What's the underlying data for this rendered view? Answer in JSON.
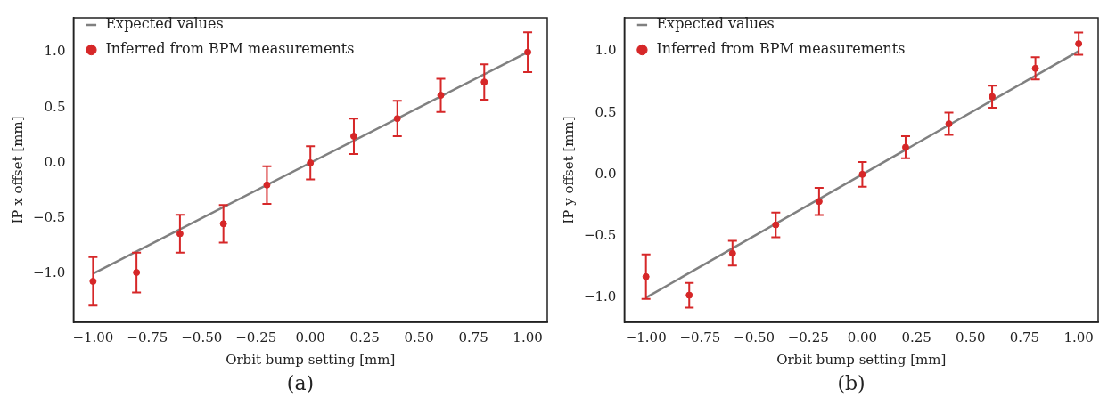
{
  "chart_data": [
    {
      "type": "scatter",
      "xlabel": "Orbit bump setting [mm]",
      "ylabel": "IP x offset [mm]",
      "annotations": [
        "(a)"
      ],
      "legend": "top left",
      "grid": false,
      "xlim": [
        -1.09,
        1.09
      ],
      "xticks": [
        {
          "value": -1,
          "label": "−1.00"
        },
        {
          "value": -0.75,
          "label": "−0.75"
        },
        {
          "value": -0.5,
          "label": "−0.50"
        },
        {
          "value": -0.25,
          "label": "−0.25"
        },
        {
          "value": 0,
          "label": "0.00"
        },
        {
          "value": 0.25,
          "label": "0.25"
        },
        {
          "value": 0.5,
          "label": "0.50"
        },
        {
          "value": 0.75,
          "label": "0.75"
        },
        {
          "value": 1,
          "label": "1.00"
        }
      ],
      "ylim": [
        -1.44,
        1.31
      ],
      "yticks": [
        {
          "value": -1,
          "label": "−1.0"
        },
        {
          "value": -0.5,
          "label": "−0.5"
        },
        {
          "value": 0,
          "label": "0.0"
        },
        {
          "value": 0.5,
          "label": "0.5"
        },
        {
          "value": 1,
          "label": "1.0"
        }
      ],
      "series": [
        {
          "name": "Expected values",
          "type": "line",
          "color": "#808080",
          "marker": "none",
          "x": [
            -1,
            1
          ],
          "values": [
            -1,
            1
          ]
        },
        {
          "name": "Inferred from BPM measurements",
          "type": "scatter",
          "color": "#d62728",
          "marker": "circle",
          "x": [
            -1,
            -0.8,
            -0.6,
            -0.4,
            -0.2,
            0,
            0.2,
            0.4,
            0.6,
            0.8,
            1
          ],
          "values": [
            -1.07,
            -0.99,
            -0.64,
            -0.55,
            -0.2,
            0,
            0.24,
            0.4,
            0.61,
            0.73,
            1.0
          ],
          "errors": [
            0.22,
            0.18,
            0.17,
            0.17,
            0.17,
            0.15,
            0.16,
            0.16,
            0.15,
            0.16,
            0.18
          ]
        }
      ]
    },
    {
      "type": "scatter",
      "xlabel": "Orbit bump setting [mm]",
      "ylabel": "IP y offset [mm]",
      "annotations": [
        "(b)"
      ],
      "legend": "top left",
      "grid": false,
      "xlim": [
        -1.1,
        1.09
      ],
      "xticks": [
        {
          "value": -1,
          "label": "−1.00"
        },
        {
          "value": -0.75,
          "label": "−0.75"
        },
        {
          "value": -0.5,
          "label": "−0.50"
        },
        {
          "value": -0.25,
          "label": "−0.25"
        },
        {
          "value": 0,
          "label": "0.00"
        },
        {
          "value": 0.25,
          "label": "0.25"
        },
        {
          "value": 0.5,
          "label": "0.50"
        },
        {
          "value": 0.75,
          "label": "0.75"
        },
        {
          "value": 1,
          "label": "1.00"
        }
      ],
      "ylim": [
        -1.2,
        1.27
      ],
      "yticks": [
        {
          "value": -1,
          "label": "−1.0"
        },
        {
          "value": -0.5,
          "label": "−0.5"
        },
        {
          "value": 0,
          "label": "0.0"
        },
        {
          "value": 0.5,
          "label": "0.5"
        },
        {
          "value": 1,
          "label": "1.0"
        }
      ],
      "series": [
        {
          "name": "Expected values",
          "type": "line",
          "color": "#808080",
          "marker": "none",
          "x": [
            -1,
            1
          ],
          "values": [
            -1,
            1
          ]
        },
        {
          "name": "Inferred from BPM measurements",
          "type": "scatter",
          "color": "#d62728",
          "marker": "circle",
          "x": [
            -1,
            -0.8,
            -0.6,
            -0.4,
            -0.2,
            0,
            0.2,
            0.4,
            0.6,
            0.8,
            1
          ],
          "values": [
            -0.83,
            -0.98,
            -0.64,
            -0.41,
            -0.22,
            0,
            0.22,
            0.41,
            0.63,
            0.86,
            1.06
          ],
          "errors": [
            0.18,
            0.1,
            0.1,
            0.1,
            0.11,
            0.1,
            0.09,
            0.09,
            0.09,
            0.09,
            0.09
          ]
        }
      ]
    }
  ]
}
